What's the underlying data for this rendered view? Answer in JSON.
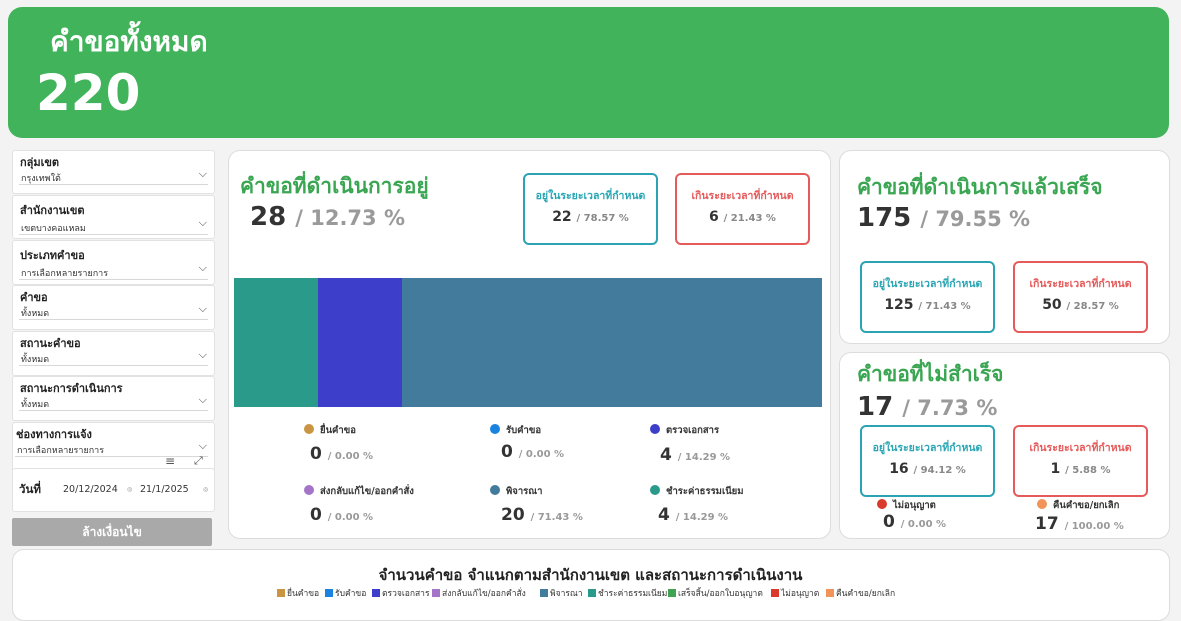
{
  "header": {
    "title": "คำขอทั้งหมด",
    "total": "220"
  },
  "filters": [
    {
      "label": "กลุ่มเขต",
      "value": "กรุงเทพใต้"
    },
    {
      "label": "สำนักงานเขต",
      "value": "เขตบางคอแหลม"
    },
    {
      "label": "ประเภทคำขอ",
      "value": "การเลือกหลายรายการ"
    },
    {
      "label": "คำขอ",
      "value": "ทั้งหมด"
    },
    {
      "label": "สถานะคำขอ",
      "value": "ทั้งหมด"
    },
    {
      "label": "สถานะการดำเนินการ",
      "value": "ทั้งหมด"
    },
    {
      "label": "ช่องทางการแจ้ง",
      "value": "การเลือกหลายรายการ"
    }
  ],
  "date": {
    "label": "วันที่",
    "from": "20/12/2024",
    "to": "21/1/2025"
  },
  "clear_button": "ล้างเงื่อนไข",
  "in_progress": {
    "title": "คำขอที่ดำเนินการอยู่",
    "count": "28",
    "percent": "/ 12.73 %",
    "on_time": {
      "label": "อยู่ในระยะเวลาที่กำหนด",
      "count": "22",
      "percent": "/ 78.57 %"
    },
    "overdue": {
      "label": "เกินระยะเวลาที่กำหนด",
      "count": "6",
      "percent": "/ 21.43 %"
    },
    "stages": [
      {
        "label": "ยื่นคำขอ",
        "count": "0",
        "percent": "/ 0.00 %",
        "color": "#c99542"
      },
      {
        "label": "รับคำขอ",
        "count": "0",
        "percent": "/ 0.00 %",
        "color": "#1a83e0"
      },
      {
        "label": "ตรวจเอกสาร",
        "count": "4",
        "percent": "/ 14.29 %",
        "color": "#3d3ec9"
      },
      {
        "label": "ส่งกลับแก้ไข/ออกคำสั่ง",
        "count": "0",
        "percent": "/ 0.00 %",
        "color": "#a474c9"
      },
      {
        "label": "พิจารณา",
        "count": "20",
        "percent": "/ 71.43 %",
        "color": "#437b9c"
      },
      {
        "label": "ชำระค่าธรรมเนียม",
        "count": "4",
        "percent": "/ 14.29 %",
        "color": "#2a9a8b"
      }
    ],
    "bar_segments": [
      {
        "stage": "ชำระค่าธรรมเนียม",
        "value": 4,
        "color": "#2a9a8b"
      },
      {
        "stage": "ตรวจเอกสาร",
        "value": 4,
        "color": "#3d3ec9"
      },
      {
        "stage": "พิจารณา",
        "value": 20,
        "color": "#437b9c"
      }
    ]
  },
  "completed": {
    "title": "คำขอที่ดำเนินการแล้วเสร็จ",
    "count": "175",
    "percent": "/ 79.55 %",
    "on_time": {
      "label": "อยู่ในระยะเวลาที่กำหนด",
      "count": "125",
      "percent": "/ 71.43 %"
    },
    "overdue": {
      "label": "เกินระยะเวลาที่กำหนด",
      "count": "50",
      "percent": "/ 28.57 %"
    }
  },
  "failed": {
    "title": "คำขอที่ไม่สำเร็จ",
    "count": "17",
    "percent": "/ 7.73 %",
    "on_time": {
      "label": "อยู่ในระยะเวลาที่กำหนด",
      "count": "16",
      "percent": "/ 94.12 %"
    },
    "overdue": {
      "label": "เกินระยะเวลาที่กำหนด",
      "count": "1",
      "percent": "/ 5.88 %"
    },
    "outcomes": [
      {
        "label": "ไม่อนุญาต",
        "count": "0",
        "percent": "/ 0.00 %",
        "color": "#d93a2b"
      },
      {
        "label": "คืนคำขอ/ยกเลิก",
        "count": "17",
        "percent": "/ 100.00 %",
        "color": "#f0945a"
      }
    ]
  },
  "bottom_chart": {
    "title": "จำนวนคำขอ  จำแนกตามสำนักงานเขต และสถานะการดำเนินงาน",
    "legend": [
      {
        "label": "ยื่นคำขอ",
        "color": "#c99542"
      },
      {
        "label": "รับคำขอ",
        "color": "#1a83e0"
      },
      {
        "label": "ตรวจเอกสาร",
        "color": "#3d3ec9"
      },
      {
        "label": "ส่งกลับแก้ไข/ออกคำสั่ง",
        "color": "#a474c9"
      },
      {
        "label": "พิจารณา",
        "color": "#437b9c"
      },
      {
        "label": "ชำระค่าธรรมเนียม",
        "color": "#2a9a8b"
      },
      {
        "label": "เสร็จสิ้น/ออกใบอนุญาต",
        "color": "#41a34f"
      },
      {
        "label": "ไม่อนุญาต",
        "color": "#d93a2b"
      },
      {
        "label": "คืนคำขอ/ยกเลิก",
        "color": "#f0945a"
      }
    ]
  }
}
